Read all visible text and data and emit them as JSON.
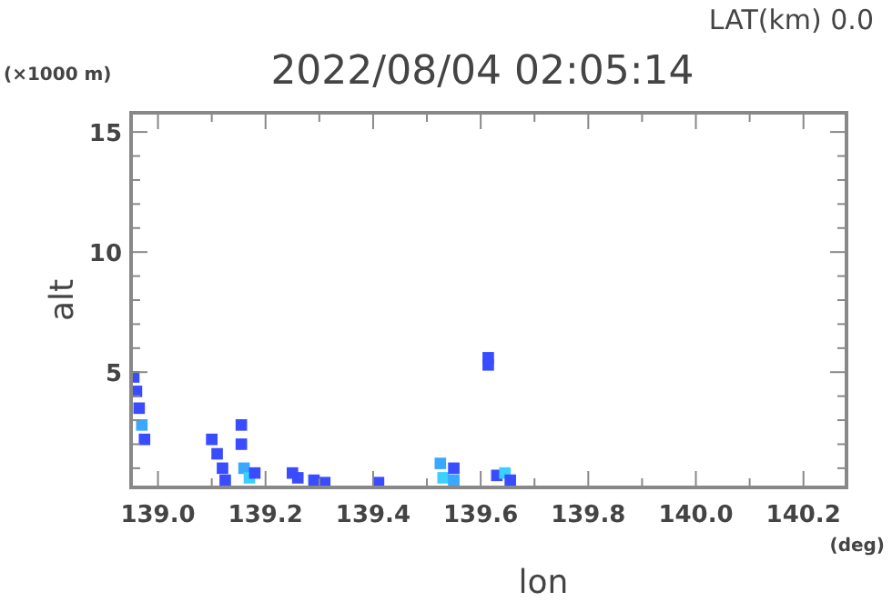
{
  "chart_data": {
    "type": "scatter",
    "title": "2022/08/04 02:05:14",
    "xlabel": "lon",
    "ylabel": "alt",
    "annotations": [
      "LAT(km) 0.0",
      "(×1000 m)",
      "(deg)"
    ],
    "x": [
      138.955,
      138.96,
      138.965,
      138.97,
      138.975,
      139.1,
      139.11,
      139.12,
      139.125,
      139.155,
      139.155,
      139.16,
      139.17,
      139.18,
      139.25,
      139.26,
      139.29,
      139.31,
      139.41,
      139.525,
      139.53,
      139.55,
      139.55,
      139.614,
      139.614,
      139.63,
      139.645,
      139.655
    ],
    "values": [
      4.8,
      4.2,
      3.5,
      2.8,
      2.2,
      2.2,
      1.6,
      1.0,
      0.5,
      2.8,
      2.0,
      1.0,
      0.6,
      0.8,
      0.8,
      0.6,
      0.5,
      0.4,
      0.4,
      1.2,
      0.6,
      1.0,
      0.5,
      5.6,
      5.3,
      0.7,
      0.8,
      0.5
    ],
    "colors": [
      "#3a4cff",
      "#3a4cff",
      "#3a4cff",
      "#3aa8ff",
      "#3a4cff",
      "#3a4cff",
      "#3a4cff",
      "#3a4cff",
      "#3a4cff",
      "#3a4cff",
      "#3a4cff",
      "#3aa8ff",
      "#3ad0ff",
      "#3a4cff",
      "#3a4cff",
      "#3a4cff",
      "#3a4cff",
      "#3a4cff",
      "#3a4cff",
      "#3aa8ff",
      "#3ad0ff",
      "#3a4cff",
      "#3aa8ff",
      "#3a4cff",
      "#3a4cff",
      "#3a4cff",
      "#3ad0ff",
      "#3a4cff"
    ],
    "marker": "square",
    "xlim": [
      138.95,
      140.28
    ],
    "ylim": [
      0.2,
      15.8
    ],
    "xticks": [
      {
        "value": 139.0,
        "label": "139.0"
      },
      {
        "value": 139.1,
        "label": null
      },
      {
        "value": 139.2,
        "label": "139.2"
      },
      {
        "value": 139.3,
        "label": null
      },
      {
        "value": 139.4,
        "label": "139.4"
      },
      {
        "value": 139.5,
        "label": null
      },
      {
        "value": 139.6,
        "label": "139.6"
      },
      {
        "value": 139.7,
        "label": null
      },
      {
        "value": 139.8,
        "label": "139.8"
      },
      {
        "value": 139.9,
        "label": null
      },
      {
        "value": 140.0,
        "label": "140.0"
      },
      {
        "value": 140.1,
        "label": null
      },
      {
        "value": 140.2,
        "label": "140.2"
      }
    ],
    "yticks": [
      {
        "value": 1,
        "label": null
      },
      {
        "value": 2,
        "label": null
      },
      {
        "value": 3,
        "label": null
      },
      {
        "value": 4,
        "label": null
      },
      5,
      {
        "value": 6,
        "label": null
      },
      {
        "value": 7,
        "label": null
      },
      {
        "value": 8,
        "label": null
      },
      {
        "value": 9,
        "label": null
      },
      10,
      {
        "value": 11,
        "label": null
      },
      {
        "value": 12,
        "label": null
      },
      {
        "value": 13,
        "label": null
      },
      {
        "value": 14,
        "label": null
      },
      15
    ]
  }
}
